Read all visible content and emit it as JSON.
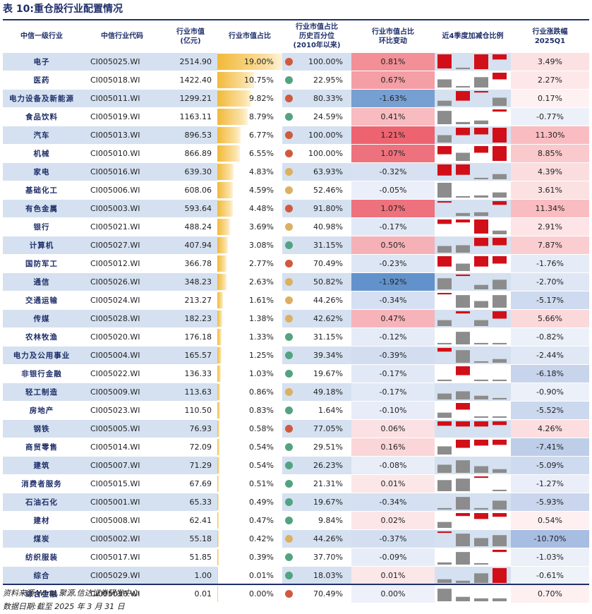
{
  "title": "表 10:重仓股行业配置情况",
  "headers": [
    "中信一级行业",
    "中信行业代码",
    "行业市值\n(亿元)",
    "行业市值占比",
    "行业市值占比\n历史百分位\n(2010年以来)",
    "行业市值占比\n环比变动",
    "近4季度加减仓比例",
    "行业涨跌幅\n2025Q1"
  ],
  "colors": {
    "red": "#d10f18",
    "gray": "#8c8c8c",
    "dot_red": "#cf5a3d",
    "dot_orange": "#dcb062",
    "dot_green": "#53a381",
    "accent": "#1f2f6a"
  },
  "rows": [
    {
      "name": "电子",
      "code": "CI005025.WI",
      "mv": "2514.90",
      "share": "19.00%",
      "pct": "100.00%",
      "chg": "0.81%",
      "ret": "3.49%",
      "q": [
        {
          "c": "red",
          "h": 0.95
        },
        {
          "c": "gray",
          "h": 0.1
        },
        {
          "c": "red",
          "h": 1.0
        },
        {
          "c": "red",
          "h": 0.35
        }
      ]
    },
    {
      "name": "医药",
      "code": "CI005018.WI",
      "mv": "1422.40",
      "share": "10.75%",
      "pct": "22.95%",
      "chg": "0.67%",
      "ret": "2.27%",
      "q": [
        {
          "c": "gray",
          "h": 0.55
        },
        {
          "c": "gray",
          "h": 0.1
        },
        {
          "c": "gray",
          "h": 0.7
        },
        {
          "c": "red",
          "h": 0.45
        }
      ]
    },
    {
      "name": "电力设备及新能源",
      "code": "CI005011.WI",
      "mv": "1299.21",
      "share": "9.82%",
      "pct": "80.33%",
      "chg": "-1.63%",
      "ret": "0.17%",
      "q": [
        {
          "c": "gray",
          "h": 0.35
        },
        {
          "c": "red",
          "h": 0.65
        },
        {
          "c": "red",
          "h": 0.1
        },
        {
          "c": "gray",
          "h": 0.55
        }
      ]
    },
    {
      "name": "食品饮料",
      "code": "CI005019.WI",
      "mv": "1163.11",
      "share": "8.79%",
      "pct": "24.59%",
      "chg": "0.41%",
      "ret": "-0.77%",
      "q": [
        {
          "c": "gray",
          "h": 0.9
        },
        {
          "c": "gray",
          "h": 0.15
        },
        {
          "c": "gray",
          "h": 0.25
        },
        {
          "c": "red",
          "h": 0.15
        }
      ]
    },
    {
      "name": "汽车",
      "code": "CI005013.WI",
      "mv": "896.53",
      "share": "6.77%",
      "pct": "100.00%",
      "chg": "1.21%",
      "ret": "11.30%",
      "q": [
        {
          "c": "gray",
          "h": 0.5
        },
        {
          "c": "red",
          "h": 0.5
        },
        {
          "c": "red",
          "h": 0.45
        },
        {
          "c": "red",
          "h": 1.0
        }
      ]
    },
    {
      "name": "机械",
      "code": "CI005010.WI",
      "mv": "866.89",
      "share": "6.55%",
      "pct": "100.00%",
      "chg": "1.07%",
      "ret": "8.85%",
      "q": [
        {
          "c": "red",
          "h": 0.55
        },
        {
          "c": "gray",
          "h": 0.55
        },
        {
          "c": "red",
          "h": 0.45
        },
        {
          "c": "red",
          "h": 1.0
        }
      ]
    },
    {
      "name": "家电",
      "code": "CI005016.WI",
      "mv": "639.30",
      "share": "4.83%",
      "pct": "63.93%",
      "chg": "-0.32%",
      "ret": "4.39%",
      "q": [
        {
          "c": "red",
          "h": 0.75
        },
        {
          "c": "red",
          "h": 0.7
        },
        {
          "c": "gray",
          "h": 0.1
        },
        {
          "c": "gray",
          "h": 0.35
        }
      ]
    },
    {
      "name": "基础化工",
      "code": "CI005006.WI",
      "mv": "608.06",
      "share": "4.59%",
      "pct": "52.46%",
      "chg": "-0.05%",
      "ret": "3.61%",
      "q": [
        {
          "c": "gray",
          "h": 1.0
        },
        {
          "c": "gray",
          "h": 0.1
        },
        {
          "c": "gray",
          "h": 0.15
        },
        {
          "c": "gray",
          "h": 0.35
        }
      ]
    },
    {
      "name": "有色金属",
      "code": "CI005003.WI",
      "mv": "593.64",
      "share": "4.48%",
      "pct": "91.80%",
      "chg": "1.07%",
      "ret": "11.34%",
      "q": [
        {
          "c": "red",
          "h": 0.1
        },
        {
          "c": "gray",
          "h": 0.2
        },
        {
          "c": "gray",
          "h": 0.25
        },
        {
          "c": "red",
          "h": 0.25
        }
      ]
    },
    {
      "name": "银行",
      "code": "CI005021.WI",
      "mv": "488.24",
      "share": "3.69%",
      "pct": "40.98%",
      "chg": "-0.17%",
      "ret": "2.91%",
      "q": [
        {
          "c": "red",
          "h": 0.3
        },
        {
          "c": "red",
          "h": 0.2
        },
        {
          "c": "red",
          "h": 0.95
        },
        {
          "c": "gray",
          "h": 0.25
        }
      ]
    },
    {
      "name": "计算机",
      "code": "CI005027.WI",
      "mv": "407.94",
      "share": "3.08%",
      "pct": "31.15%",
      "chg": "0.50%",
      "ret": "7.87%",
      "q": [
        {
          "c": "gray",
          "h": 0.45
        },
        {
          "c": "gray",
          "h": 0.5
        },
        {
          "c": "red",
          "h": 0.55
        },
        {
          "c": "red",
          "h": 0.5
        }
      ]
    },
    {
      "name": "国防军工",
      "code": "CI005012.WI",
      "mv": "366.78",
      "share": "2.77%",
      "pct": "70.49%",
      "chg": "-0.23%",
      "ret": "-1.76%",
      "q": [
        {
          "c": "red",
          "h": 0.7
        },
        {
          "c": "gray",
          "h": 0.5
        },
        {
          "c": "red",
          "h": 0.7
        },
        {
          "c": "red",
          "h": 0.5
        }
      ]
    },
    {
      "name": "通信",
      "code": "CI005026.WI",
      "mv": "348.23",
      "share": "2.63%",
      "pct": "50.82%",
      "chg": "-1.92%",
      "ret": "-2.70%",
      "q": [
        {
          "c": "gray",
          "h": 0.75
        },
        {
          "c": "red",
          "h": 0.1
        },
        {
          "c": "gray",
          "h": 0.3
        },
        {
          "c": "gray",
          "h": 0.65
        }
      ]
    },
    {
      "name": "交通运输",
      "code": "CI005024.WI",
      "mv": "213.27",
      "share": "1.61%",
      "pct": "44.26%",
      "chg": "-0.34%",
      "ret": "-5.17%",
      "q": [
        {
          "c": "red",
          "h": 0.1
        },
        {
          "c": "gray",
          "h": 0.85
        },
        {
          "c": "gray",
          "h": 0.45
        },
        {
          "c": "gray",
          "h": 0.85
        }
      ]
    },
    {
      "name": "传媒",
      "code": "CI005028.WI",
      "mv": "182.23",
      "share": "1.38%",
      "pct": "42.62%",
      "chg": "0.47%",
      "ret": "5.66%",
      "q": [
        {
          "c": "gray",
          "h": 0.4
        },
        {
          "c": "red",
          "h": 0.15
        },
        {
          "c": "gray",
          "h": 0.4
        },
        {
          "c": "red",
          "h": 0.5
        }
      ]
    },
    {
      "name": "农林牧渔",
      "code": "CI005020.WI",
      "mv": "176.18",
      "share": "1.33%",
      "pct": "31.15%",
      "chg": "-0.12%",
      "ret": "-0.82%",
      "q": [
        {
          "c": "gray",
          "h": 0.1
        },
        {
          "c": "gray",
          "h": 0.85
        },
        {
          "c": "gray",
          "h": 0.1
        },
        {
          "c": "gray",
          "h": 0.1
        }
      ]
    },
    {
      "name": "电力及公用事业",
      "code": "CI005004.WI",
      "mv": "165.57",
      "share": "1.25%",
      "pct": "39.34%",
      "chg": "-0.39%",
      "ret": "-2.44%",
      "q": [
        {
          "c": "red",
          "h": 0.25
        },
        {
          "c": "gray",
          "h": 0.85
        },
        {
          "c": "gray",
          "h": 0.1
        },
        {
          "c": "gray",
          "h": 0.25
        }
      ]
    },
    {
      "name": "非银行金融",
      "code": "CI005022.WI",
      "mv": "136.33",
      "share": "1.03%",
      "pct": "19.67%",
      "chg": "-0.17%",
      "ret": "-6.18%",
      "q": [
        {
          "c": "gray",
          "h": 0.1
        },
        {
          "c": "red",
          "h": 0.6
        },
        {
          "c": "gray",
          "h": 0.1
        },
        {
          "c": "gray",
          "h": 0.1
        }
      ]
    },
    {
      "name": "轻工制造",
      "code": "CI005009.WI",
      "mv": "113.63",
      "share": "0.86%",
      "pct": "49.18%",
      "chg": "-0.17%",
      "ret": "-0.90%",
      "q": [
        {
          "c": "gray",
          "h": 0.4
        },
        {
          "c": "gray",
          "h": 0.55
        },
        {
          "c": "gray",
          "h": 0.25
        },
        {
          "c": "gray",
          "h": 0.1
        }
      ]
    },
    {
      "name": "房地产",
      "code": "CI005023.WI",
      "mv": "110.50",
      "share": "0.83%",
      "pct": "1.64%",
      "chg": "-0.10%",
      "ret": "-5.52%",
      "q": [
        {
          "c": "gray",
          "h": 0.35
        },
        {
          "c": "red",
          "h": 0.45
        },
        {
          "c": "gray",
          "h": 0.1
        },
        {
          "c": "gray",
          "h": 0.1
        }
      ]
    },
    {
      "name": "钢铁",
      "code": "CI005005.WI",
      "mv": "76.93",
      "share": "0.58%",
      "pct": "77.05%",
      "chg": "0.06%",
      "ret": "4.26%",
      "q": [
        {
          "c": "red",
          "h": 0.3
        },
        {
          "c": "red",
          "h": 0.35
        },
        {
          "c": "red",
          "h": 0.35
        },
        {
          "c": "red",
          "h": 0.25
        }
      ]
    },
    {
      "name": "商贸零售",
      "code": "CI005014.WI",
      "mv": "72.09",
      "share": "0.54%",
      "pct": "29.51%",
      "chg": "0.16%",
      "ret": "-7.41%",
      "q": [
        {
          "c": "gray",
          "h": 0.55
        },
        {
          "c": "red",
          "h": 0.55
        },
        {
          "c": "red",
          "h": 0.4
        },
        {
          "c": "red",
          "h": 0.35
        }
      ]
    },
    {
      "name": "建筑",
      "code": "CI005007.WI",
      "mv": "71.29",
      "share": "0.54%",
      "pct": "26.23%",
      "chg": "-0.08%",
      "ret": "-5.09%",
      "q": [
        {
          "c": "gray",
          "h": 0.55
        },
        {
          "c": "gray",
          "h": 0.85
        },
        {
          "c": "gray",
          "h": 0.45
        },
        {
          "c": "gray",
          "h": 0.25
        }
      ]
    },
    {
      "name": "消费者服务",
      "code": "CI005015.WI",
      "mv": "67.69",
      "share": "0.51%",
      "pct": "21.31%",
      "chg": "0.01%",
      "ret": "-1.27%",
      "q": [
        {
          "c": "gray",
          "h": 0.75
        },
        {
          "c": "gray",
          "h": 0.85
        },
        {
          "c": "red",
          "h": 0.1
        },
        {
          "c": "gray",
          "h": 0.1
        }
      ]
    },
    {
      "name": "石油石化",
      "code": "CI005001.WI",
      "mv": "65.33",
      "share": "0.49%",
      "pct": "19.67%",
      "chg": "-0.34%",
      "ret": "-5.93%",
      "q": [
        {
          "c": "gray",
          "h": 0.1
        },
        {
          "c": "gray",
          "h": 0.85
        },
        {
          "c": "gray",
          "h": 0.1
        },
        {
          "c": "gray",
          "h": 0.6
        }
      ]
    },
    {
      "name": "建材",
      "code": "CI005008.WI",
      "mv": "62.41",
      "share": "0.47%",
      "pct": "9.84%",
      "chg": "0.02%",
      "ret": "0.54%",
      "q": [
        {
          "c": "gray",
          "h": 0.4
        },
        {
          "c": "red",
          "h": 0.2
        },
        {
          "c": "red",
          "h": 0.4
        },
        {
          "c": "red",
          "h": 0.25
        }
      ]
    },
    {
      "name": "煤炭",
      "code": "CI005002.WI",
      "mv": "55.18",
      "share": "0.42%",
      "pct": "44.26%",
      "chg": "-0.37%",
      "ret": "-10.70%",
      "q": [
        {
          "c": "red",
          "h": 0.1
        },
        {
          "c": "gray",
          "h": 0.85
        },
        {
          "c": "gray",
          "h": 0.55
        },
        {
          "c": "gray",
          "h": 0.75
        }
      ]
    },
    {
      "name": "纺织服装",
      "code": "CI005017.WI",
      "mv": "51.85",
      "share": "0.39%",
      "pct": "37.70%",
      "chg": "-0.09%",
      "ret": "-1.03%",
      "q": [
        {
          "c": "gray",
          "h": 0.15
        },
        {
          "c": "gray",
          "h": 0.85
        },
        {
          "c": "gray",
          "h": 0.1
        },
        {
          "c": "red",
          "h": 0.15
        }
      ]
    },
    {
      "name": "综合",
      "code": "CI005029.WI",
      "mv": "1.00",
      "share": "0.01%",
      "pct": "18.03%",
      "chg": "0.01%",
      "ret": "-0.61%",
      "q": [
        {
          "c": "gray",
          "h": 0.25
        },
        {
          "c": "gray",
          "h": 0.15
        },
        {
          "c": "gray",
          "h": 0.65
        },
        {
          "c": "red",
          "h": 1.0
        }
      ]
    },
    {
      "name": "综合金融",
      "code": "CI005030.WI",
      "mv": "0.01",
      "share": "0.00%",
      "pct": "70.49%",
      "chg": "0.00%",
      "ret": "0.70%",
      "q": [
        {
          "c": "gray",
          "h": 0.85
        },
        {
          "c": "gray",
          "h": 0.3
        },
        {
          "c": "gray",
          "h": 0.2
        },
        {
          "c": "gray",
          "h": 0.2
        }
      ]
    }
  ],
  "footer": {
    "source": "资料来源:Wind,聚源,信达证券研发中心",
    "date": "数据日期:截至 2025 年 3 月 31 日"
  }
}
